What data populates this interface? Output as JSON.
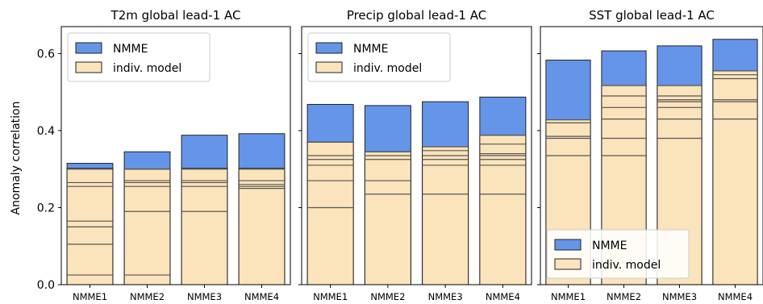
{
  "colors": {
    "nmme": "#6495e8",
    "indiv": "#fbe3bc",
    "edge": "#222222",
    "legend_frame": "#cccccc"
  },
  "y_axis": {
    "label": "Anomaly correlation",
    "ticks": [
      "0.0",
      "0.2",
      "0.4",
      "0.6"
    ]
  },
  "chart_data": [
    {
      "type": "bar",
      "title": "T2m global lead-1 AC",
      "categories": [
        "NMME1",
        "NMME2",
        "NMME3",
        "NMME4"
      ],
      "ylim": [
        0,
        0.67
      ],
      "legend": {
        "placement": "top-left",
        "entries": [
          "NMME",
          "indiv. model"
        ]
      },
      "series": [
        {
          "name": "NMME",
          "values": [
            0.315,
            0.345,
            0.388,
            0.392
          ]
        },
        {
          "name": "indiv. model",
          "values": [
            0.302,
            0.3,
            0.302,
            0.302
          ]
        }
      ],
      "model_lines": [
        [
          0.025,
          0.105,
          0.15,
          0.165,
          0.255,
          0.265,
          0.3
        ],
        [
          0.025,
          0.19,
          0.255,
          0.265,
          0.27,
          0.3
        ],
        [
          0.19,
          0.255,
          0.265,
          0.27,
          0.3
        ],
        [
          0.25,
          0.255,
          0.26,
          0.27,
          0.3
        ]
      ]
    },
    {
      "type": "bar",
      "title": "Precip global lead-1 AC",
      "categories": [
        "NMME1",
        "NMME2",
        "NMME3",
        "NMME4"
      ],
      "ylim": [
        0,
        0.67
      ],
      "legend": {
        "placement": "top-left",
        "entries": [
          "NMME",
          "indiv. model"
        ]
      },
      "series": [
        {
          "name": "NMME",
          "values": [
            0.468,
            0.465,
            0.475,
            0.487
          ]
        },
        {
          "name": "indiv. model",
          "values": [
            0.37,
            0.345,
            0.358,
            0.388
          ]
        }
      ],
      "model_lines": [
        [
          0.2,
          0.27,
          0.31,
          0.325,
          0.335,
          0.37
        ],
        [
          0.235,
          0.27,
          0.325,
          0.335,
          0.345
        ],
        [
          0.235,
          0.31,
          0.325,
          0.335,
          0.348,
          0.358
        ],
        [
          0.235,
          0.31,
          0.325,
          0.335,
          0.34,
          0.365,
          0.388
        ]
      ]
    },
    {
      "type": "bar",
      "title": "SST global lead-1 AC",
      "categories": [
        "NMME1",
        "NMME2",
        "NMME3",
        "NMME4"
      ],
      "ylim": [
        0,
        0.67
      ],
      "legend": {
        "placement": "bottom-left",
        "entries": [
          "NMME",
          "indiv. model"
        ]
      },
      "series": [
        {
          "name": "NMME",
          "values": [
            0.583,
            0.607,
            0.62,
            0.637
          ]
        },
        {
          "name": "indiv. model",
          "values": [
            0.428,
            0.517,
            0.517,
            0.555
          ]
        }
      ],
      "model_lines": [
        [
          0.335,
          0.38,
          0.385,
          0.42,
          0.428
        ],
        [
          0.335,
          0.38,
          0.43,
          0.46,
          0.49,
          0.517
        ],
        [
          0.38,
          0.43,
          0.46,
          0.475,
          0.48,
          0.49,
          0.517
        ],
        [
          0.43,
          0.475,
          0.48,
          0.535,
          0.545,
          0.555
        ]
      ]
    }
  ]
}
